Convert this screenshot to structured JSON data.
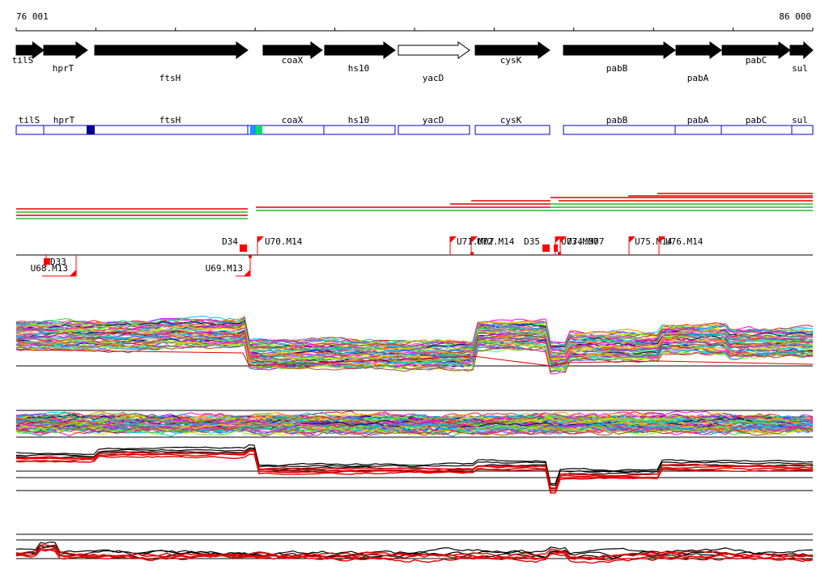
{
  "ruler": {
    "start_label": "76 001",
    "end_label": "86 000"
  },
  "genes": [
    {
      "name": "tilS",
      "strand": "+",
      "filled": true
    },
    {
      "name": "hprT",
      "strand": "+",
      "filled": true
    },
    {
      "name": "ftsH",
      "strand": "+",
      "filled": true
    },
    {
      "name": "coaX",
      "strand": "+",
      "filled": true
    },
    {
      "name": "hs10",
      "strand": "+",
      "filled": true
    },
    {
      "name": "yacD",
      "strand": "+",
      "filled": false
    },
    {
      "name": "cysK",
      "strand": "+",
      "filled": true
    },
    {
      "name": "pabB",
      "strand": "+",
      "filled": true
    },
    {
      "name": "pabA",
      "strand": "+",
      "filled": true
    },
    {
      "name": "pabC",
      "strand": "+",
      "filled": true
    },
    {
      "name": "sul",
      "strand": "+",
      "filled": true
    }
  ],
  "operon_boxes": [
    {
      "name": "tilS"
    },
    {
      "name": "hprT"
    },
    {
      "name": "ftsH"
    },
    {
      "name": "coaX"
    },
    {
      "name": "hs10"
    },
    {
      "name": "yacD"
    },
    {
      "name": "cysK"
    },
    {
      "name": "pabB"
    },
    {
      "name": "pabA"
    },
    {
      "name": "pabC"
    },
    {
      "name": "sul"
    }
  ],
  "operon_highlights": [
    {
      "color": "#00008b"
    },
    {
      "color": "#1e90ff"
    },
    {
      "color": "#00dd66"
    }
  ],
  "upper_markers": [
    "D34",
    "U70.M14",
    "U71.M07",
    "U72.M14",
    "D35",
    "U73.M07",
    "U74.M07",
    "U75.M14",
    "U76.M14"
  ],
  "lower_markers": [
    "D33",
    "U68.M13",
    "U69.M13"
  ],
  "colors": {
    "gene_outline": "#000000",
    "operon_border": "#0000cc",
    "marker_flag": "#ff0000",
    "track_red": "#e00000",
    "track_green": "#22bb22",
    "track_black": "#000000"
  },
  "plot_palette": [
    "#e41a1c",
    "#ff00ff",
    "#00bfff",
    "#32cd32",
    "#ff8c00",
    "#8a2be2",
    "#00ced1",
    "#ffd700",
    "#1e90ff",
    "#ff1493",
    "#7cfc00",
    "#a0522d",
    "#000080",
    "#ff69b4",
    "#20b2aa",
    "#9acd32"
  ]
}
